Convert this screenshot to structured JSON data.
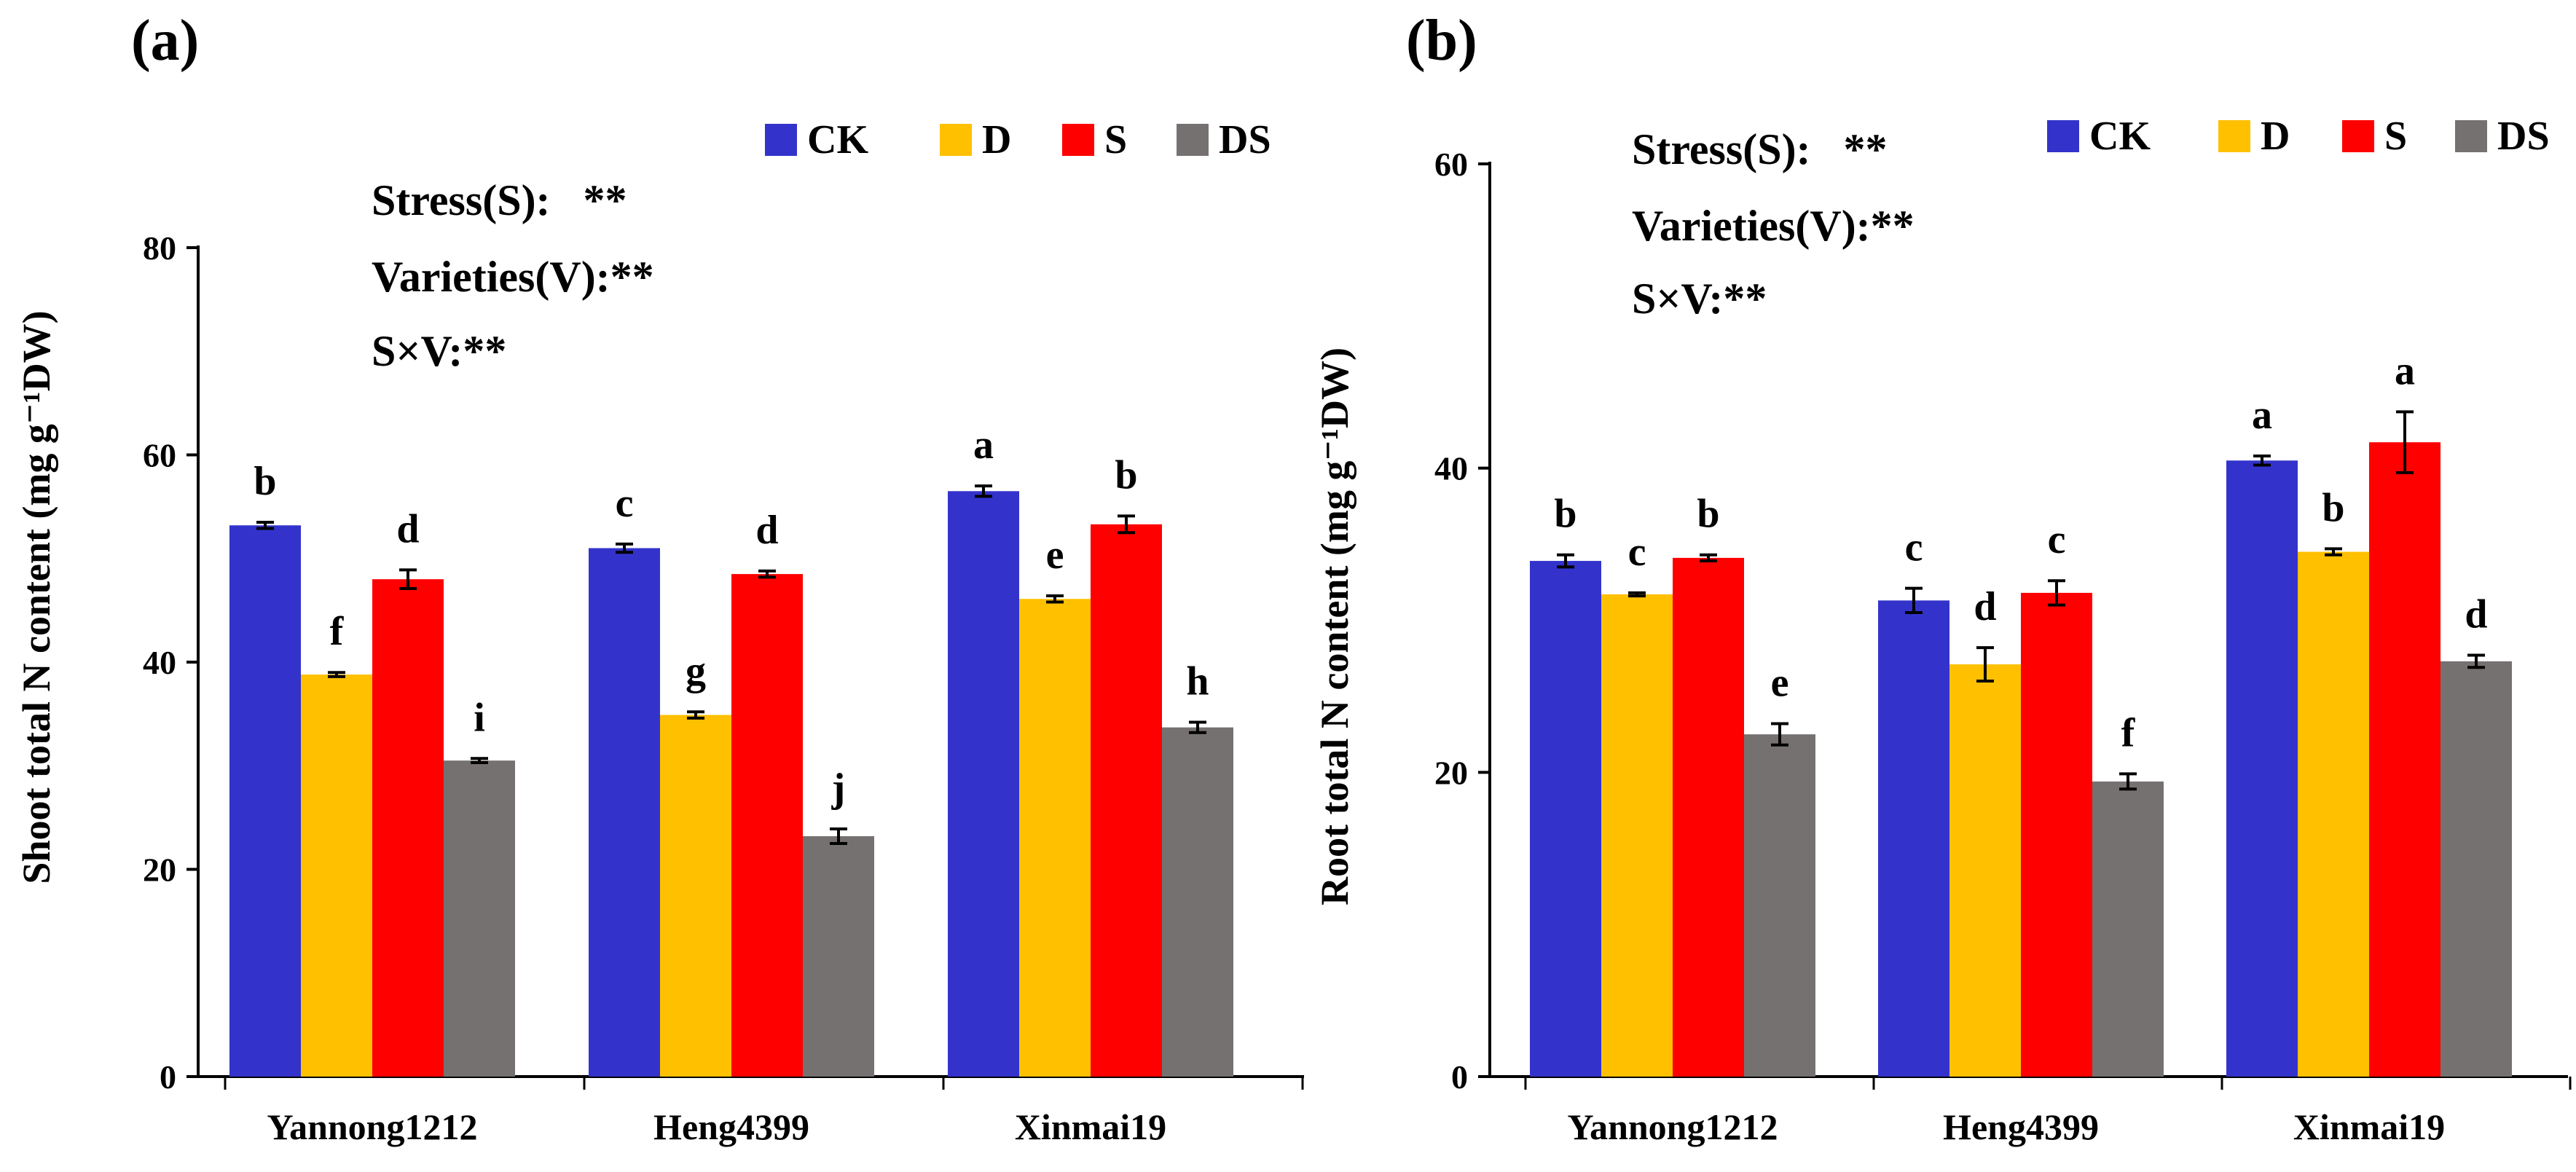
{
  "chart_data": [
    {
      "type": "bar",
      "panel_label": "(a)",
      "categories": [
        "Yannong1212",
        "Heng4399",
        "Xinmai19"
      ],
      "series": [
        {
          "name": "CK",
          "color": "#3333CC",
          "values": [
            53.2,
            51.0,
            56.5
          ],
          "errors": [
            0.3,
            0.4,
            0.5
          ],
          "letters": [
            "b",
            "c",
            "a"
          ]
        },
        {
          "name": "D",
          "color": "#FFC000",
          "values": [
            38.8,
            34.9,
            46.1
          ],
          "errors": [
            0.2,
            0.3,
            0.3
          ],
          "letters": [
            "f",
            "g",
            "e"
          ]
        },
        {
          "name": "S",
          "color": "#FF0000",
          "values": [
            48.0,
            48.5,
            53.3
          ],
          "errors": [
            0.9,
            0.3,
            0.8
          ],
          "letters": [
            "d",
            "d",
            "b"
          ]
        },
        {
          "name": "DS",
          "color": "#767171",
          "values": [
            30.5,
            23.2,
            33.7
          ],
          "errors": [
            0.2,
            0.7,
            0.5
          ],
          "letters": [
            "i",
            "j",
            "h"
          ]
        }
      ],
      "ylabel": "Shoot total N content (mg g⁻¹DW)",
      "ylim": [
        0,
        80
      ],
      "yticks": [
        0,
        20,
        40,
        60,
        80
      ],
      "legend": "top-right",
      "annotations": [
        "Stress(S):   **",
        "Varieties(V):**",
        "S×V:**"
      ]
    },
    {
      "type": "bar",
      "panel_label": "(b)",
      "categories": [
        "Yannong1212",
        "Heng4399",
        "Xinmai19"
      ],
      "series": [
        {
          "name": "CK",
          "color": "#3333CC",
          "values": [
            33.9,
            31.3,
            40.5
          ],
          "errors": [
            0.4,
            0.8,
            0.3
          ],
          "letters": [
            "b",
            "c",
            "a"
          ]
        },
        {
          "name": "D",
          "color": "#FFC000",
          "values": [
            31.7,
            27.1,
            34.5
          ],
          "errors": [
            0.1,
            1.1,
            0.2
          ],
          "letters": [
            "c",
            "d",
            "b"
          ]
        },
        {
          "name": "S",
          "color": "#FF0000",
          "values": [
            34.1,
            31.8,
            41.7
          ],
          "errors": [
            0.2,
            0.8,
            2.0
          ],
          "letters": [
            "b",
            "c",
            "a"
          ]
        },
        {
          "name": "DS",
          "color": "#767171",
          "values": [
            22.5,
            19.4,
            27.3
          ],
          "errors": [
            0.7,
            0.5,
            0.4
          ],
          "letters": [
            "e",
            "f",
            "d"
          ]
        }
      ],
      "ylabel": "Root total N content (mg g⁻¹DW)",
      "ylim": [
        0,
        60
      ],
      "yticks": [
        0,
        20,
        40,
        60
      ],
      "legend": "top-right",
      "annotations": [
        "Stress(S):   **",
        "Varieties(V):**",
        "S×V:**"
      ]
    }
  ]
}
